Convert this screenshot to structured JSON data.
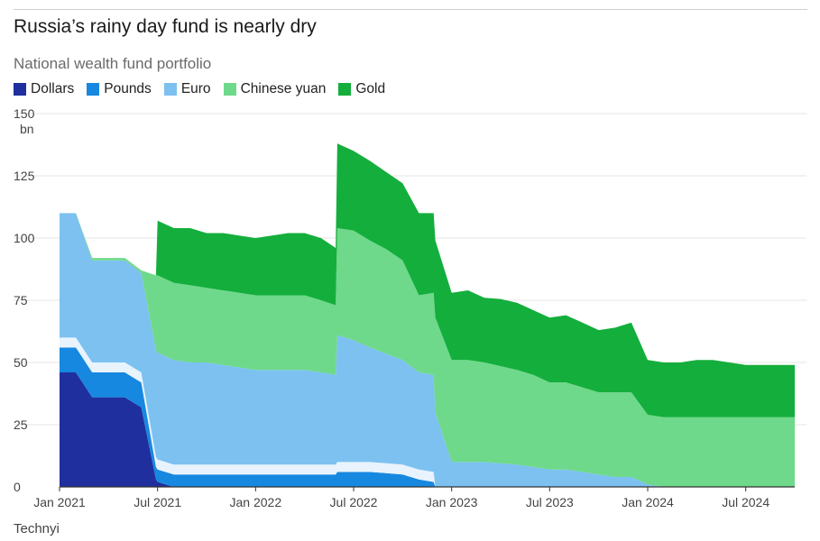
{
  "header": {
    "title": "Russia’s rainy day fund is nearly dry",
    "subtitle": "National wealth fund portfolio"
  },
  "source": "Technyi",
  "colors": {
    "Dollars": "#1f2f9e",
    "Pounds": "#1788e0",
    "Gap": "#e8f3fd",
    "Euro": "#7cc1f0",
    "Chinese yuan": "#6ed98a",
    "Gold": "#14ae3c",
    "grid": "#e6e6e6",
    "axis": "#333333"
  },
  "chart_data": {
    "type": "area",
    "stacked": true,
    "title": "Russia’s rainy day fund is nearly dry",
    "subtitle": "National wealth fund portfolio",
    "ylabel_unit": "bn",
    "ylim": [
      0,
      150
    ],
    "yticks": [
      0,
      25,
      50,
      75,
      100,
      125,
      150
    ],
    "x_date_range": [
      "2021-01",
      "2024-09"
    ],
    "xticks": [
      {
        "label": "Jan 2021",
        "month": 0
      },
      {
        "label": "Jul 2021",
        "month": 6
      },
      {
        "label": "Jan 2022",
        "month": 12
      },
      {
        "label": "Jul 2022",
        "month": 18
      },
      {
        "label": "Jan 2023",
        "month": 24
      },
      {
        "label": "Jul 2023",
        "month": 30
      },
      {
        "label": "Jan 2024",
        "month": 36
      },
      {
        "label": "Jul 2024",
        "month": 42
      }
    ],
    "x": [
      0,
      1,
      2,
      3,
      4,
      5,
      5.9,
      6,
      7,
      8,
      9,
      10,
      11,
      12,
      13,
      14,
      15,
      16,
      16.9,
      17,
      18,
      19,
      20,
      21,
      22,
      22.9,
      23,
      24,
      25,
      26,
      27,
      28,
      29,
      30,
      31,
      32,
      33,
      34,
      35,
      36,
      37,
      38,
      39,
      40,
      41,
      42,
      43,
      44,
      45
    ],
    "series": [
      {
        "name": "Dollars",
        "values": [
          46,
          46,
          36,
          36,
          36,
          32,
          3,
          2,
          0,
          0,
          0,
          0,
          0,
          0,
          0,
          0,
          0,
          0,
          0,
          0,
          0,
          0,
          0,
          0,
          0,
          0,
          0,
          0,
          0,
          0,
          0,
          0,
          0,
          0,
          0,
          0,
          0,
          0,
          0,
          0,
          0,
          0,
          0,
          0,
          0,
          0,
          0,
          0,
          0
        ]
      },
      {
        "name": "Pounds",
        "values": [
          10,
          10,
          10,
          10,
          10,
          10,
          5,
          5,
          5,
          5,
          5,
          5,
          5,
          5,
          5,
          5,
          5,
          5,
          5,
          6,
          6,
          6,
          5.5,
          5,
          3,
          2,
          0,
          0,
          0,
          0,
          0,
          0,
          0,
          0,
          0,
          0,
          0,
          0,
          0,
          0,
          0,
          0,
          0,
          0,
          0,
          0,
          0,
          0,
          0
        ]
      },
      {
        "name": "Euro",
        "values": [
          50,
          50,
          41,
          41,
          41,
          40,
          43,
          43,
          42,
          41,
          41,
          40,
          39,
          38,
          38,
          38,
          38,
          37,
          36,
          51,
          49,
          46,
          44,
          42,
          39,
          39,
          30,
          10,
          10,
          10,
          9.5,
          9,
          8,
          7,
          7,
          6,
          5,
          4,
          4,
          1,
          0,
          0,
          0,
          0,
          0,
          0,
          0,
          0,
          0
        ]
      },
      {
        "name": "Chinese yuan",
        "values": [
          0,
          0,
          1,
          1,
          1,
          1,
          30,
          31,
          31,
          31,
          30,
          30,
          30,
          30,
          30,
          30,
          30,
          29,
          28,
          43,
          44,
          43,
          42,
          40,
          31,
          33,
          38,
          41,
          41,
          40,
          39,
          38,
          37,
          35,
          35,
          34,
          33,
          34,
          34,
          28,
          28,
          28,
          28,
          28,
          28,
          28,
          28,
          28,
          28
        ]
      },
      {
        "name": "Gold",
        "values": [
          0,
          0,
          0,
          0,
          0,
          0,
          0,
          22,
          22,
          23,
          22,
          23,
          23,
          23,
          24,
          25,
          25,
          25,
          23,
          34,
          32,
          32,
          31,
          31,
          33,
          32,
          31,
          27,
          28,
          26,
          27,
          27,
          26,
          26,
          27,
          26,
          25,
          26,
          28,
          22,
          22,
          22,
          23,
          23,
          22,
          21,
          21,
          21,
          21
        ]
      }
    ],
    "legend": [
      "Dollars",
      "Pounds",
      "Euro",
      "Chinese yuan",
      "Gold"
    ],
    "legend_position": "top-left",
    "grid": true
  }
}
